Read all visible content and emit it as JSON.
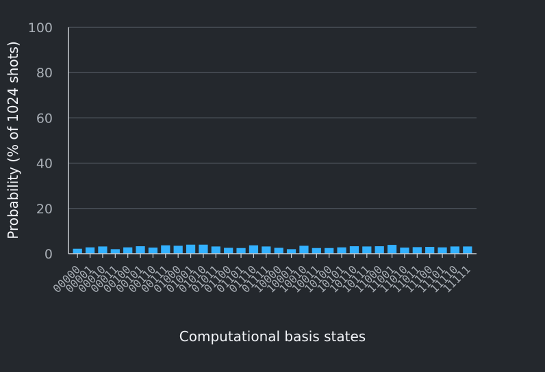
{
  "chart_data": {
    "type": "bar",
    "title": "",
    "xlabel": "Computational basis states",
    "ylabel": "Probability (% of 1024 shots)",
    "ylim": [
      0,
      100
    ],
    "yticks": [
      0,
      20,
      40,
      60,
      80,
      100
    ],
    "grid": true,
    "legend": "none",
    "bar_color": "#33b1ff",
    "categories": [
      "00000",
      "00001",
      "00010",
      "00011",
      "00100",
      "00101",
      "00110",
      "00111",
      "01000",
      "01001",
      "01010",
      "01011",
      "01100",
      "01101",
      "01110",
      "01111",
      "10000",
      "10001",
      "10010",
      "10011",
      "10100",
      "10101",
      "10110",
      "10111",
      "11000",
      "11001",
      "11010",
      "11011",
      "11100",
      "11101",
      "11110",
      "11111"
    ],
    "values": [
      2.2,
      2.8,
      3.2,
      2.0,
      2.8,
      3.3,
      2.7,
      3.7,
      3.5,
      4.0,
      4.0,
      3.2,
      2.6,
      2.5,
      3.7,
      3.2,
      2.6,
      2.0,
      3.5,
      2.5,
      2.5,
      2.8,
      3.3,
      3.2,
      3.3,
      3.9,
      2.7,
      2.9,
      3.0,
      2.8,
      3.2,
      3.2
    ]
  }
}
